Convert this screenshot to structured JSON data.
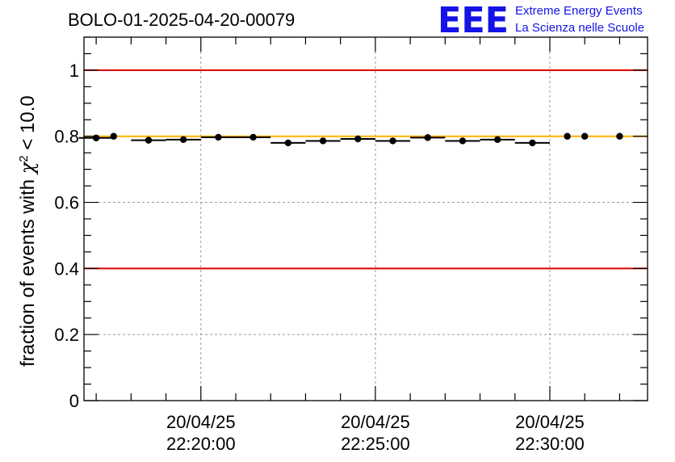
{
  "header": {
    "title": "BOLO-01-2025-04-20-00079",
    "logo_text": "EEE",
    "logo_line1": "Extreme Energy Events",
    "logo_line2": "La Scienza nelle Scuole"
  },
  "colors": {
    "reference_lines": "#dd0000",
    "mean_line": "#ffb000",
    "points": "#000000",
    "logo": "#1414e6",
    "grid": "#9a9a9a"
  },
  "chart_data": {
    "type": "scatter",
    "title": "BOLO-01-2025-04-20-00079",
    "xlabel": "",
    "ylabel_prefix": "fraction of events with ",
    "ylabel_symbol": "χ",
    "ylabel_exponent": "2",
    "ylabel_suffix": " < 10.0",
    "ylim": [
      0,
      1.1
    ],
    "y_ticks": [
      0,
      0.2,
      0.4,
      0.6,
      0.8,
      1
    ],
    "y_tick_labels": [
      "0",
      "0.2",
      "0.4",
      "0.6",
      "0.8",
      "1"
    ],
    "x_unit": "minutes since 2025-04-20 22:00:00",
    "xlim": [
      16.65,
      32.8
    ],
    "x_ticks": [
      20,
      25,
      30
    ],
    "x_tick_labels": [
      {
        "date": "20/04/25",
        "time": "22:20:00"
      },
      {
        "date": "20/04/25",
        "time": "22:25:00"
      },
      {
        "date": "20/04/25",
        "time": "22:30:00"
      }
    ],
    "reference_lines": [
      0.4,
      1.0
    ],
    "mean_line": 0.8,
    "series": [
      {
        "name": "fraction",
        "bin_width": 1.0,
        "x": [
          17.0,
          17.5,
          18.5,
          19.5,
          20.5,
          21.5,
          22.5,
          23.5,
          24.5,
          25.5,
          26.5,
          27.5,
          28.5,
          29.5,
          30.5,
          31.0,
          32.0
        ],
        "y": [
          0.795,
          0.8,
          0.788,
          0.79,
          0.797,
          0.797,
          0.78,
          0.786,
          0.792,
          0.786,
          0.796,
          0.786,
          0.79,
          0.78,
          0.8,
          0.8,
          0.8
        ],
        "has_bar": [
          true,
          false,
          true,
          true,
          true,
          true,
          true,
          true,
          true,
          true,
          true,
          true,
          true,
          true,
          false,
          false,
          false
        ]
      }
    ]
  }
}
